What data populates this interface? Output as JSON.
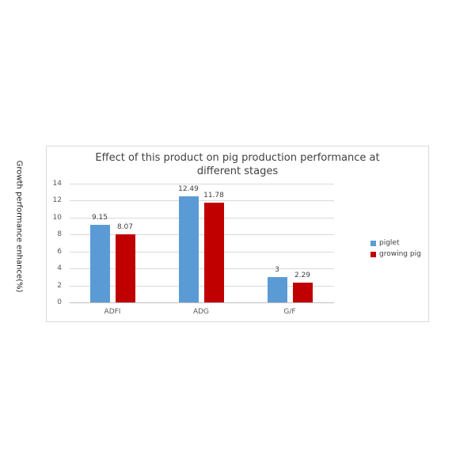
{
  "chart_data": {
    "type": "bar",
    "title": "Effect of this product on pig production performance at different stages",
    "title_lines": [
      "Effect of this product on pig production performance at",
      "different stages"
    ],
    "xlabel": "",
    "ylabel": "Growth performance enhance(%)",
    "categories": [
      "ADFI",
      "ADG",
      "G/F"
    ],
    "series": [
      {
        "name": "piglet",
        "color": "#5B9BD5",
        "values": [
          9.15,
          12.49,
          3
        ]
      },
      {
        "name": "growing pig",
        "color": "#C00000",
        "values": [
          8.07,
          11.78,
          2.29
        ]
      }
    ],
    "data_labels": [
      [
        "9.15",
        "12.49",
        "3"
      ],
      [
        "8.07",
        "11.78",
        "2.29"
      ]
    ],
    "ylim": [
      0,
      14
    ],
    "yticks": [
      "0",
      "2",
      "4",
      "6",
      "8",
      "10",
      "12",
      "14"
    ],
    "grid": true,
    "legend_position": "right"
  }
}
